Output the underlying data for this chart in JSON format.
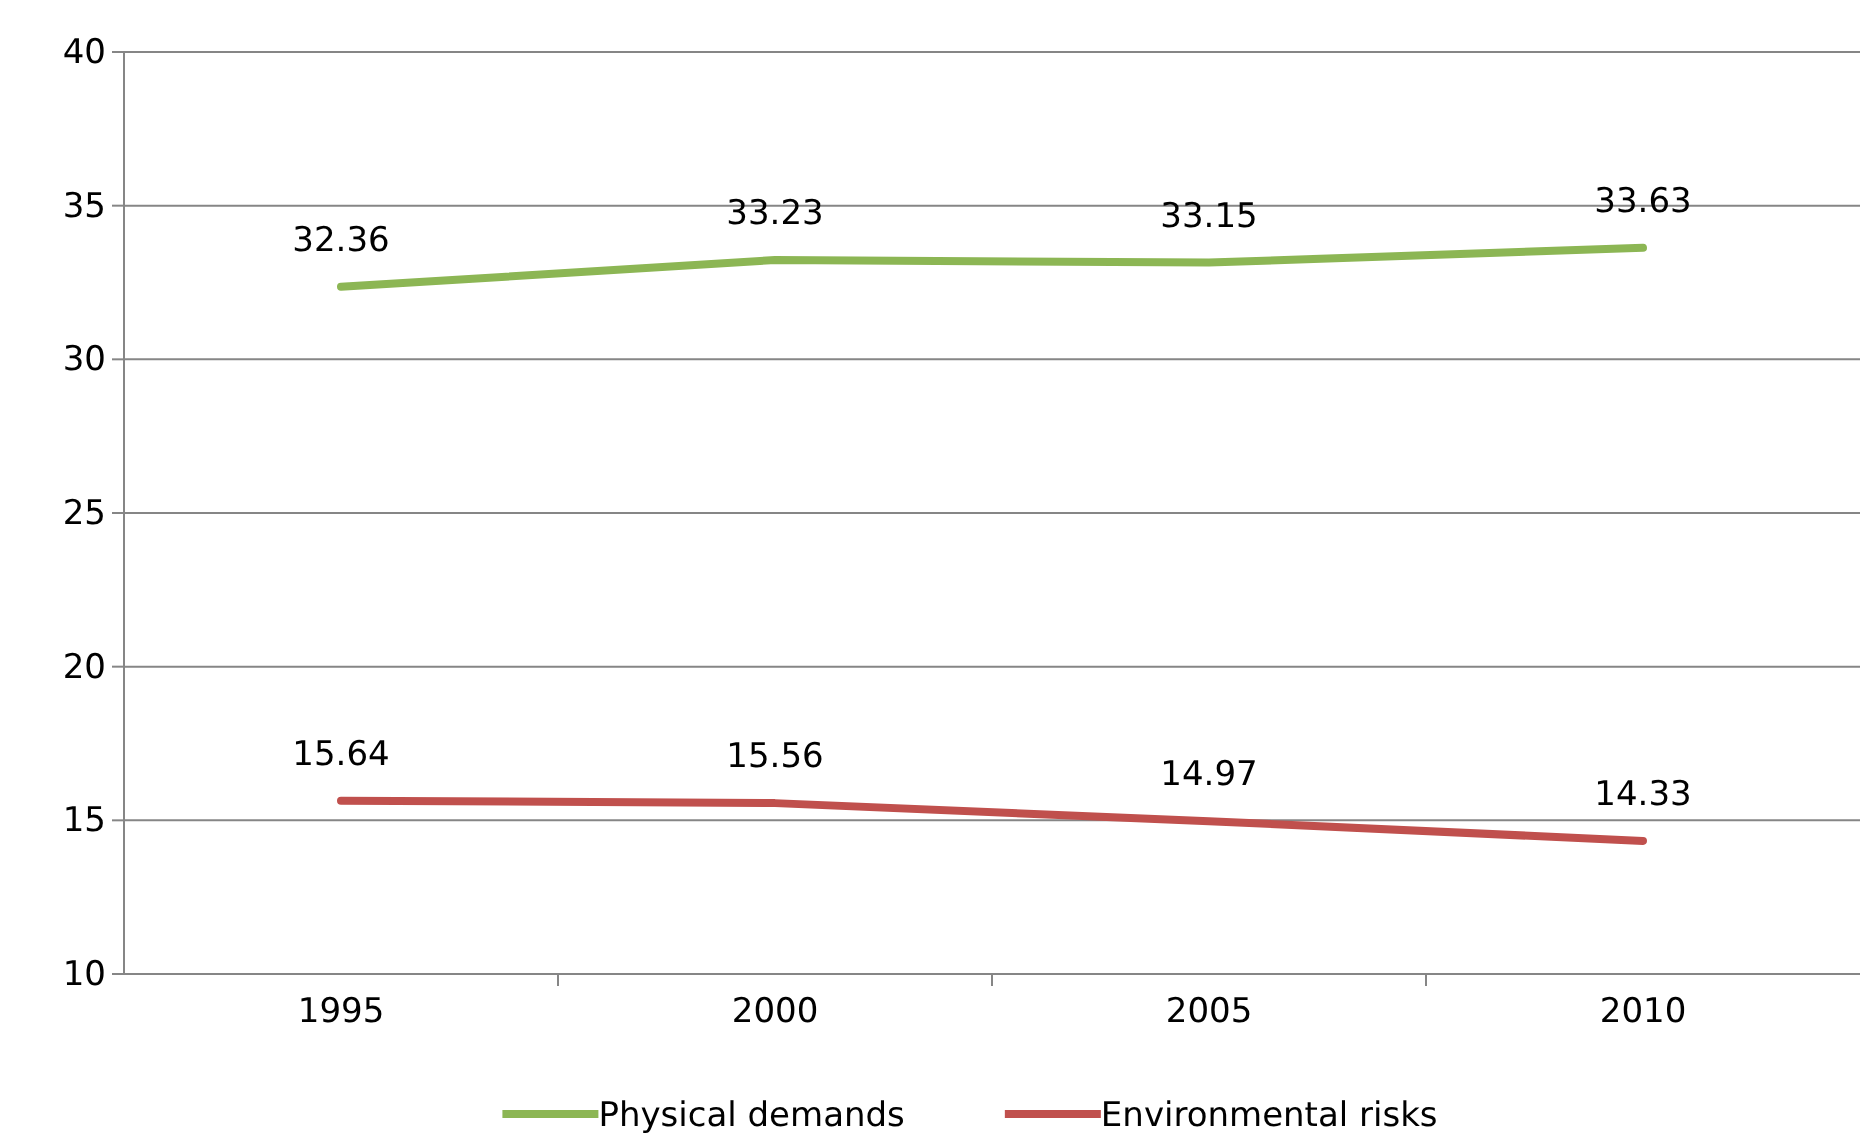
{
  "chart_data": {
    "type": "line",
    "categories": [
      "1995",
      "2000",
      "2005",
      "2010"
    ],
    "series": [
      {
        "name": "Physical demands",
        "color": "#8cb654",
        "values": [
          32.36,
          33.23,
          33.15,
          33.63
        ]
      },
      {
        "name": "Environmental risks",
        "color": "#c0504d",
        "values": [
          15.64,
          15.56,
          14.97,
          14.33
        ]
      }
    ],
    "ylim": [
      10,
      40
    ],
    "yticks": [
      10,
      15,
      20,
      25,
      30,
      35,
      40
    ],
    "grid": "y",
    "legend": "bottom",
    "data_labels": true,
    "marker": "none",
    "line_style": "solid"
  }
}
